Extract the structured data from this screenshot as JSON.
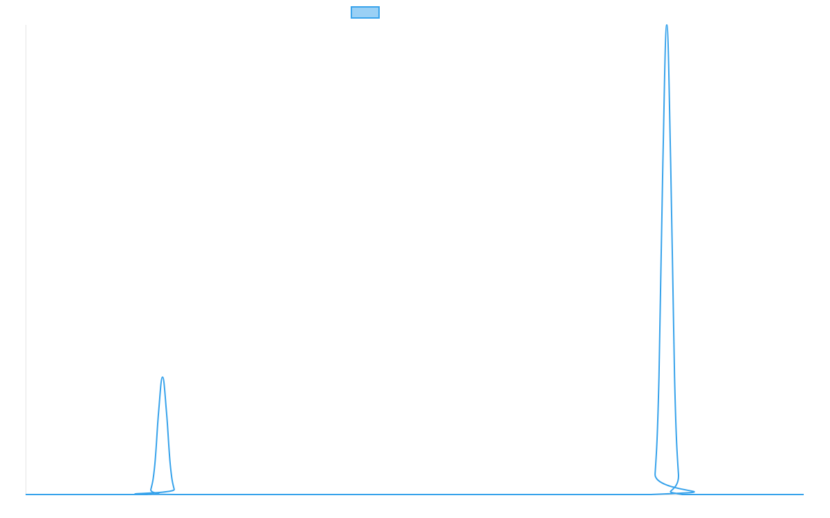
{
  "chart_data": {
    "type": "line",
    "title": "",
    "xlabel": "",
    "ylabel": "",
    "xlim": [
      0,
      100
    ],
    "ylim": [
      0,
      1
    ],
    "grid": false,
    "legend": {
      "placement": "top",
      "entries": [
        {
          "name": "",
          "color": "#36a2eb"
        }
      ]
    },
    "series": [
      {
        "color": "#36a2eb",
        "fill": "#9ad0f5",
        "points": [
          [
            0,
            0
          ],
          [
            15.6,
            0
          ],
          [
            16.1,
            0.011
          ],
          [
            16.6,
            0.0625
          ],
          [
            17.1,
            0.177
          ],
          [
            17.6,
            0.25
          ],
          [
            18.1,
            0.177
          ],
          [
            18.6,
            0.0625
          ],
          [
            19.1,
            0.011
          ],
          [
            19.6,
            0
          ],
          [
            80.4,
            0
          ],
          [
            80.9,
            0.044
          ],
          [
            81.4,
            0.25
          ],
          [
            81.9,
            0.707
          ],
          [
            82.4,
            1.0
          ],
          [
            82.9,
            0.707
          ],
          [
            83.4,
            0.25
          ],
          [
            83.9,
            0.044
          ],
          [
            84.4,
            0
          ],
          [
            100,
            0
          ]
        ]
      }
    ]
  }
}
